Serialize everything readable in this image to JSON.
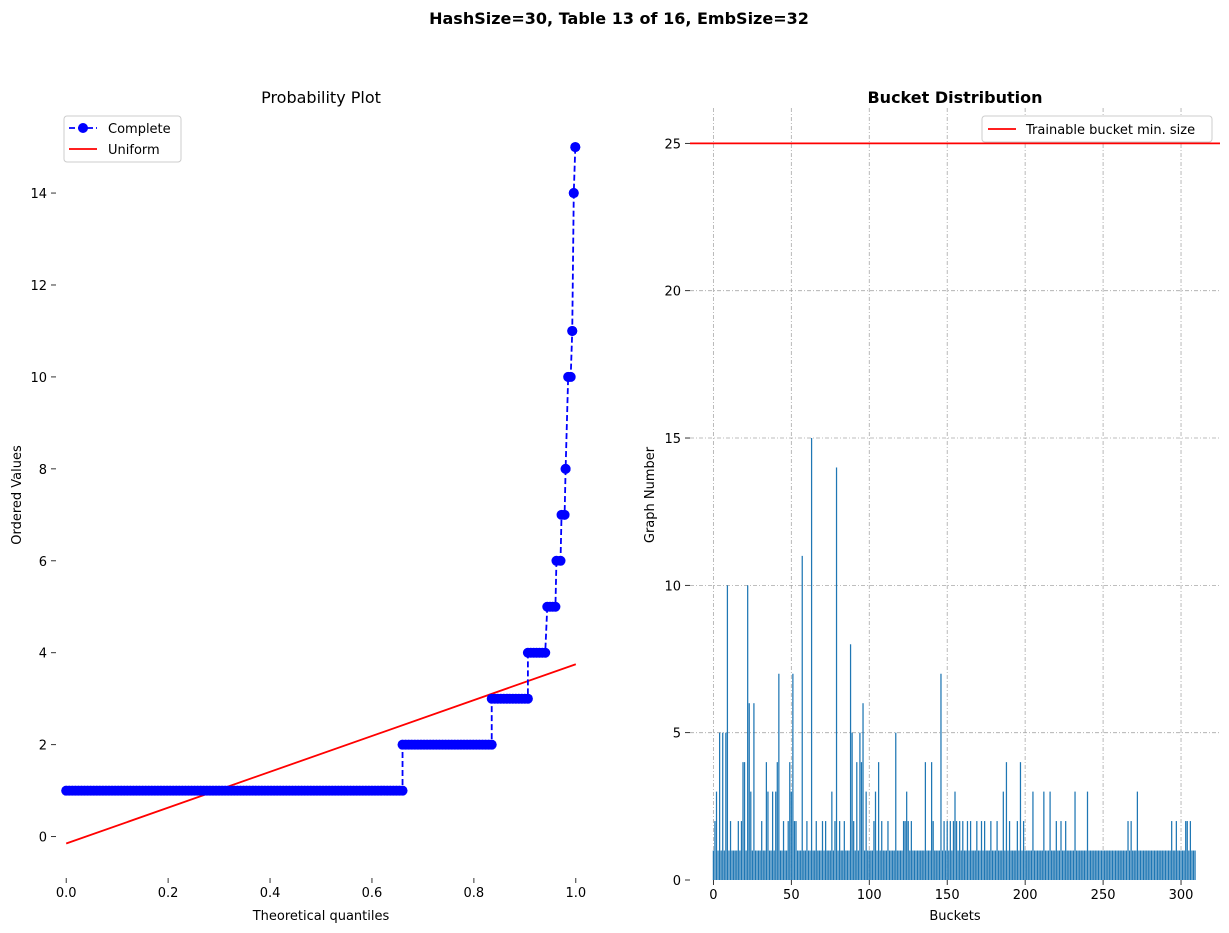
{
  "suptitle": "HashSize=30, Table 13 of 16, EmbSize=32",
  "chart_data": [
    {
      "type": "scatter",
      "title": "Probability Plot",
      "xlabel": "Theoretical quantiles",
      "ylabel": "Ordered Values",
      "xlim": [
        -0.02,
        1.02
      ],
      "ylim": [
        -0.9,
        15.85
      ],
      "xticks": [
        0.0,
        0.2,
        0.4,
        0.6,
        0.8,
        1.0
      ],
      "xtick_labels": [
        "0.0",
        "0.2",
        "0.4",
        "0.6",
        "0.8",
        "1.0"
      ],
      "yticks": [
        0,
        2,
        4,
        6,
        8,
        10,
        12,
        14
      ],
      "ytick_labels": [
        "0",
        "2",
        "4",
        "6",
        "8",
        "10",
        "12",
        "14"
      ],
      "grid": false,
      "legend_position": "top-left",
      "series": [
        {
          "name": "Complete",
          "style": "dashed line with circle markers",
          "color": "#0000ff",
          "steps": [
            {
              "value": 1,
              "x_start": 0.0,
              "x_end": 0.66
            },
            {
              "value": 2,
              "x_start": 0.66,
              "x_end": 0.835
            },
            {
              "value": 3,
              "x_start": 0.835,
              "x_end": 0.906
            },
            {
              "value": 4,
              "x_start": 0.906,
              "x_end": 0.94
            },
            {
              "value": 5,
              "x_start": 0.944,
              "x_end": 0.96
            },
            {
              "value": 6,
              "x_start": 0.962,
              "x_end": 0.97
            },
            {
              "value": 7,
              "x_start": 0.972,
              "x_end": 0.978
            },
            {
              "value": 8,
              "x_start": 0.98,
              "x_end": 0.98
            },
            {
              "value": 10,
              "x_start": 0.985,
              "x_end": 0.99
            },
            {
              "value": 11,
              "x_start": 0.993,
              "x_end": 0.993
            },
            {
              "value": 14,
              "x_start": 0.996,
              "x_end": 0.996
            },
            {
              "value": 15,
              "x_start": 0.999,
              "x_end": 0.999
            }
          ]
        },
        {
          "name": "Uniform",
          "style": "line",
          "color": "#ff0000",
          "x": [
            0.0,
            1.0
          ],
          "y": [
            -0.15,
            3.75
          ]
        }
      ]
    },
    {
      "type": "bar",
      "title": "Bucket Distribution",
      "xlabel": "Buckets",
      "ylabel": "Graph Number",
      "xlim": [
        -15,
        325
      ],
      "ylim": [
        0,
        26.2
      ],
      "xticks": [
        0,
        50,
        100,
        150,
        200,
        250,
        300
      ],
      "xtick_labels": [
        "0",
        "50",
        "100",
        "150",
        "200",
        "250",
        "300"
      ],
      "yticks": [
        0,
        5,
        10,
        15,
        20,
        25
      ],
      "ytick_labels": [
        "0",
        "5",
        "10",
        "15",
        "20",
        "25"
      ],
      "grid": true,
      "legend_position": "top-right",
      "bar_color": "#1f77b4",
      "baseline_value": 1,
      "bucket_range": [
        0,
        309
      ],
      "bar_overrides": {
        "1": 2,
        "2": 3,
        "4": 5,
        "6": 5,
        "8": 5,
        "9": 10,
        "11": 2,
        "16": 2,
        "18": 2,
        "19": 4,
        "20": 4,
        "22": 10,
        "23": 6,
        "24": 3,
        "26": 6,
        "31": 2,
        "34": 4,
        "35": 3,
        "38": 3,
        "40": 3,
        "41": 4,
        "42": 7,
        "45": 2,
        "48": 2,
        "49": 4,
        "50": 3,
        "51": 7,
        "52": 2,
        "53": 2,
        "57": 11,
        "60": 2,
        "63": 15,
        "66": 2,
        "70": 2,
        "72": 2,
        "76": 3,
        "78": 2,
        "79": 14,
        "81": 2,
        "84": 2,
        "88": 8,
        "89": 5,
        "90": 2,
        "92": 4,
        "94": 5,
        "95": 4,
        "96": 6,
        "98": 3,
        "103": 2,
        "104": 3,
        "106": 4,
        "108": 2,
        "112": 2,
        "117": 5,
        "122": 2,
        "123": 2,
        "124": 3,
        "125": 2,
        "127": 2,
        "136": 4,
        "140": 4,
        "141": 2,
        "146": 7,
        "148": 2,
        "150": 2,
        "152": 2,
        "154": 2,
        "155": 3,
        "156": 2,
        "158": 2,
        "160": 2,
        "163": 2,
        "165": 2,
        "169": 2,
        "172": 2,
        "174": 2,
        "178": 2,
        "182": 2,
        "186": 3,
        "188": 4,
        "190": 2,
        "195": 2,
        "197": 4,
        "199": 2,
        "205": 3,
        "212": 3,
        "216": 3,
        "220": 2,
        "223": 2,
        "226": 2,
        "232": 3,
        "240": 3,
        "266": 2,
        "268": 2,
        "272": 3,
        "294": 2,
        "297": 2,
        "303": 2,
        "304": 2,
        "306": 2
      },
      "hline": {
        "name": "Trainable bucket min. size",
        "y": 25,
        "color": "#ff0000"
      }
    }
  ]
}
